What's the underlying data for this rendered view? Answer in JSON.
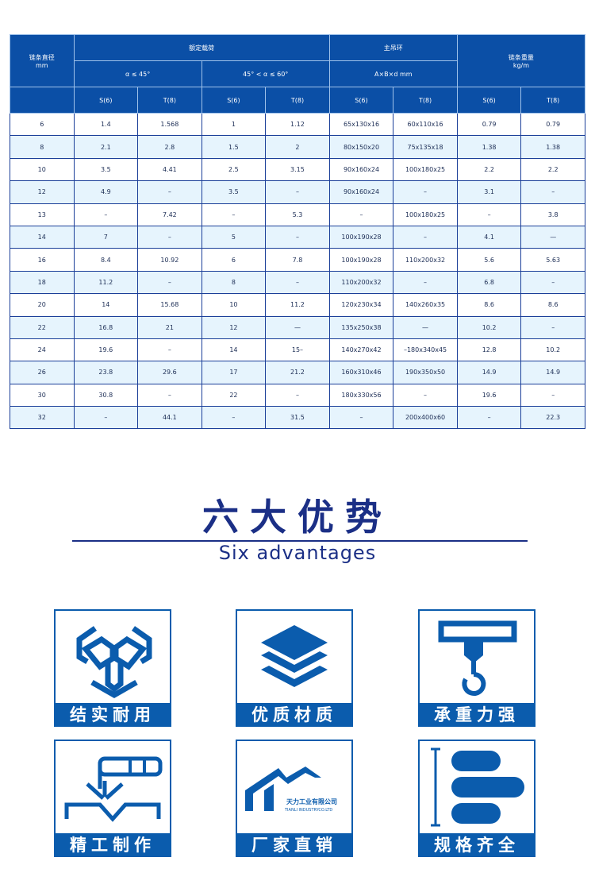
{
  "table": {
    "header": {
      "diameter": "链条直径",
      "diameter_unit": "mm",
      "rated_load": "额定载荷",
      "angle1": "α ≤ 45°",
      "angle2": "45° < α ≤ 60°",
      "master_link": "主吊环",
      "master_link_dims": "A×B×d  mm",
      "weight": "链条重量",
      "weight_unit": "kg/m",
      "grades": [
        "S(6)",
        "T(8)",
        "S(6)",
        "T(8)",
        "S(6)",
        "T(8)",
        "S(6)",
        "T(8)"
      ]
    },
    "rows": [
      [
        "6",
        "1.4",
        "1.568",
        "1",
        "1.12",
        "65x130x16",
        "60x110x16",
        "0.79",
        "0.79"
      ],
      [
        "8",
        "2.1",
        "2.8",
        "1.5",
        "2",
        "80x150x20",
        "75x135x18",
        "1.38",
        "1.38"
      ],
      [
        "10",
        "3.5",
        "4.41",
        "2.5",
        "3.15",
        "90x160x24",
        "100x180x25",
        "2.2",
        "2.2"
      ],
      [
        "12",
        "4.9",
        "–",
        "3.5",
        "–",
        "90x160x24",
        "–",
        "3.1",
        "–"
      ],
      [
        "13",
        "–",
        "7.42",
        "–",
        "5.3",
        "–",
        "100x180x25",
        "–",
        "3.8"
      ],
      [
        "14",
        "7",
        "–",
        "5",
        "–",
        "100x190x28",
        "–",
        "4.1",
        "—"
      ],
      [
        "16",
        "8.4",
        "10.92",
        "6",
        "7.8",
        "100x190x28",
        "110x200x32",
        "5.6",
        "5.63"
      ],
      [
        "18",
        "11.2",
        "–",
        "8",
        "–",
        "110x200x32",
        "–",
        "6.8",
        "–"
      ],
      [
        "20",
        "14",
        "15.68",
        "10",
        "11.2",
        "120x230x34",
        "140x260x35",
        "8.6",
        "8.6"
      ],
      [
        "22",
        "16.8",
        "21",
        "12",
        "—",
        "135x250x38",
        "—",
        "10.2",
        "–"
      ],
      [
        "24",
        "19.6",
        "–",
        "14",
        "15–",
        "140x270x42",
        "–180x340x45",
        "12.8",
        "10.2"
      ],
      [
        "26",
        "23.8",
        "29.6",
        "17",
        "21.2",
        "160x310x46",
        "190x350x50",
        "14.9",
        "14.9"
      ],
      [
        "30",
        "30.8",
        "–",
        "22",
        "–",
        "180x330x56",
        "–",
        "19.6",
        "–"
      ],
      [
        "32",
        "–",
        "44.1",
        "–",
        "31.5",
        "–",
        "200x400x60",
        "–",
        "22.3"
      ]
    ]
  },
  "section": {
    "title_cn": "六大优势",
    "title_en": "Six advantages"
  },
  "advantages": [
    {
      "label": "结实耐用",
      "icon": "chain-link-icon"
    },
    {
      "label": "优质材质",
      "icon": "layers-icon"
    },
    {
      "label": "承重力强",
      "icon": "crane-hook-icon"
    },
    {
      "label": "精工制作",
      "icon": "welding-icon"
    },
    {
      "label": "厂家直销",
      "icon": "factory-logo-icon",
      "logo_cn": "天力工业有限公司",
      "logo_en": "TIANLI INDUSTRYCO.LTD"
    },
    {
      "label": "规格齐全",
      "icon": "size-spec-icon"
    }
  ],
  "colors": {
    "primary": "#0b5cad",
    "header": "#0b4fa6",
    "title": "#1b2f86",
    "alt_row": "#e6f4fd"
  }
}
